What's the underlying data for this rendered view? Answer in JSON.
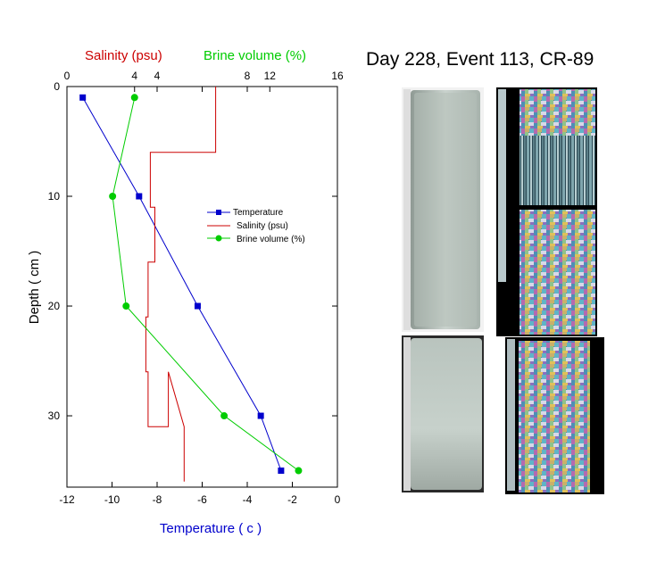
{
  "figure_title": "Day 228, Event 113, CR-89",
  "chart_data": {
    "type": "line",
    "title": "",
    "ylabel": "Depth ( cm )",
    "ylim": [
      0,
      36.5
    ],
    "y_inverted": true,
    "y_ticks": [
      0,
      10,
      20,
      30
    ],
    "axes": {
      "bottom": {
        "label": "Temperature ( c )",
        "label_color": "#0000cc",
        "range": [
          -12,
          0
        ],
        "ticks": [
          -12,
          -10,
          -8,
          -6,
          -4,
          -2,
          0
        ]
      },
      "top_salinity": {
        "label": "Salinity (psu)",
        "label_color": "#cc0000",
        "range": [
          0,
          12
        ],
        "ticks": [
          0,
          4,
          8
        ]
      },
      "top_brine": {
        "label": "Brine volume (%)",
        "label_color": "#00cc00",
        "range": [
          0,
          16
        ],
        "ticks": [
          4,
          8,
          12,
          16
        ]
      }
    },
    "series": [
      {
        "name": "Temperature",
        "color": "#0000cc",
        "marker": "square",
        "axis": "bottom",
        "x": [
          -11.3,
          -8.8,
          -6.2,
          -3.4,
          -2.5
        ],
        "y": [
          1,
          10,
          20,
          30,
          35
        ]
      },
      {
        "name": "Salinity (psu)",
        "color": "#cc0000",
        "marker": "none",
        "style": "step",
        "axis": "top_salinity",
        "x": [
          6.6,
          6.6,
          3.7,
          3.7,
          3.9,
          3.9,
          3.6,
          3.6,
          3.5,
          3.5,
          3.6,
          3.6,
          4.5,
          4.5,
          5.2,
          5.2,
          5.2
        ],
        "y": [
          0,
          6,
          6,
          11,
          11,
          16,
          16,
          21,
          21,
          26,
          26,
          31,
          31,
          26,
          31,
          31,
          36
        ]
      },
      {
        "name": "Brine volume (%)",
        "color": "#00cc00",
        "marker": "circle",
        "axis": "top_brine",
        "x": [
          4.0,
          2.7,
          3.5,
          9.3,
          13.7
        ],
        "y": [
          1,
          10,
          20,
          30,
          35
        ]
      }
    ],
    "legend": {
      "placement": "center-right",
      "entries": [
        "Temperature",
        "Salinity (psu)",
        "Brine volume (%)"
      ]
    },
    "grid": false
  },
  "images": [
    {
      "name": "core-section-top-natural",
      "kind": "ice core photo"
    },
    {
      "name": "core-section-top-polarized",
      "kind": "polarized thin section"
    },
    {
      "name": "core-section-bottom-natural",
      "kind": "ice core photo"
    },
    {
      "name": "core-section-bottom-polarized",
      "kind": "polarized thin section"
    }
  ]
}
